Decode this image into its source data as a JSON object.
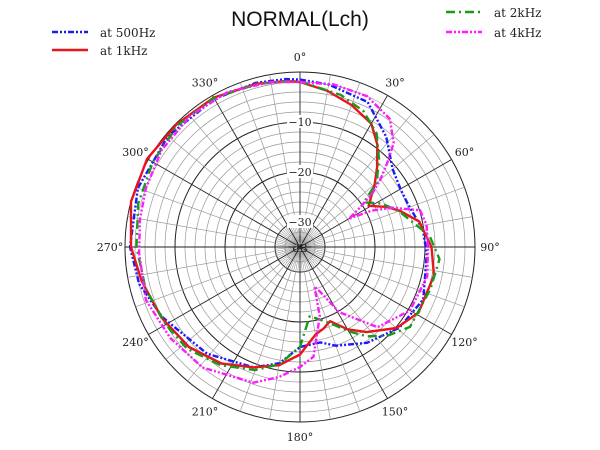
{
  "chart_data": {
    "type": "line",
    "subtype": "polar",
    "title": "NORMAL(Lch)",
    "radial_unit": "dB",
    "rlim": [
      -35,
      0
    ],
    "radial_ticks": [
      -10,
      -20,
      -30
    ],
    "radial_tick_labels": [
      "−10",
      "−20",
      "−30"
    ],
    "angle_ticks": [
      0,
      30,
      60,
      90,
      120,
      150,
      180,
      210,
      240,
      270,
      300,
      330
    ],
    "angle_tick_labels": [
      "0°",
      "30°",
      "60°",
      "90°",
      "120°",
      "150°",
      "180°",
      "210°",
      "240°",
      "270°",
      "300°",
      "330°"
    ],
    "angle_direction": "clockwise from top",
    "grid": true,
    "legend": {
      "placement": "top-left and top-right"
    },
    "series": [
      {
        "name": "at 500Hz",
        "color": "#1a1aff",
        "style": "dash-dot-dot",
        "points": [
          [
            0,
            -1.5
          ],
          [
            10,
            -2
          ],
          [
            25,
            -3
          ],
          [
            38,
            -7
          ],
          [
            50,
            -10.8
          ],
          [
            60,
            -11.8
          ],
          [
            68,
            -11.8
          ],
          [
            82,
            -10.2
          ],
          [
            93,
            -9.6
          ],
          [
            113,
            -8.2
          ],
          [
            129,
            -9.4
          ],
          [
            145,
            -11.6
          ],
          [
            160,
            -14
          ],
          [
            168,
            -15.5
          ],
          [
            180,
            -15
          ],
          [
            190,
            -11.4
          ],
          [
            201,
            -9.2
          ],
          [
            221,
            -6.7
          ],
          [
            243,
            -4.1
          ],
          [
            257,
            -2
          ],
          [
            270,
            -1
          ],
          [
            290,
            -0.5
          ],
          [
            310,
            -0.5
          ],
          [
            330,
            -0.8
          ],
          [
            345,
            -1
          ],
          [
            355,
            -1.3
          ]
        ]
      },
      {
        "name": "at 1kHz",
        "color": "#e8141e",
        "style": "solid",
        "points": [
          [
            0,
            -2
          ],
          [
            10,
            -3.3
          ],
          [
            20,
            -4.8
          ],
          [
            30,
            -6.5
          ],
          [
            37,
            -9.3
          ],
          [
            44,
            -12.8
          ],
          [
            50,
            -15.5
          ],
          [
            59,
            -19
          ],
          [
            65,
            -16
          ],
          [
            70,
            -13.8
          ],
          [
            78,
            -10.6
          ],
          [
            90,
            -8.7
          ],
          [
            102,
            -7.6
          ],
          [
            119,
            -7.9
          ],
          [
            130,
            -9.8
          ],
          [
            142,
            -13.4
          ],
          [
            150,
            -16
          ],
          [
            158,
            -19
          ],
          [
            164,
            -18
          ],
          [
            170,
            -17.2
          ],
          [
            180,
            -13.5
          ],
          [
            190,
            -11
          ],
          [
            201,
            -9.2
          ],
          [
            214,
            -6.9
          ],
          [
            228,
            -5.1
          ],
          [
            243,
            -3.9
          ],
          [
            258,
            -2.6
          ],
          [
            270,
            -1.2
          ],
          [
            285,
            0
          ],
          [
            300,
            0.3
          ],
          [
            315,
            -0.2
          ],
          [
            330,
            -0.5
          ],
          [
            345,
            -1.2
          ],
          [
            355,
            -1.7
          ]
        ]
      },
      {
        "name": "at 2kHz",
        "color": "#1a9a1a",
        "style": "dash-dot",
        "points": [
          [
            0,
            -1.9
          ],
          [
            15,
            -3.5
          ],
          [
            25,
            -5
          ],
          [
            34,
            -7.6
          ],
          [
            42,
            -11.4
          ],
          [
            50,
            -15
          ],
          [
            55,
            -19.4
          ],
          [
            62,
            -16.5
          ],
          [
            70,
            -14
          ],
          [
            76,
            -12.4
          ],
          [
            85,
            -9
          ],
          [
            95,
            -7
          ],
          [
            108,
            -7.6
          ],
          [
            126,
            -7.8
          ],
          [
            135,
            -10
          ],
          [
            143,
            -12.6
          ],
          [
            150,
            -15.5
          ],
          [
            157,
            -18.2
          ],
          [
            165,
            -20
          ],
          [
            172,
            -21
          ],
          [
            178,
            -17
          ],
          [
            180,
            -15
          ],
          [
            190,
            -11.2
          ],
          [
            200,
            -8.8
          ],
          [
            214,
            -6.5
          ],
          [
            228,
            -4.6
          ],
          [
            240,
            -4
          ],
          [
            255,
            -3
          ],
          [
            270,
            -2.3
          ],
          [
            285,
            -1.5
          ],
          [
            300,
            -1
          ],
          [
            315,
            -0.5
          ],
          [
            330,
            -0.6
          ],
          [
            345,
            -1.3
          ],
          [
            355,
            -1.7
          ]
        ]
      },
      {
        "name": "at 4kHz",
        "color": "#ff1aff",
        "style": "dash-dot-dot",
        "points": [
          [
            0,
            -2
          ],
          [
            12,
            -1.8
          ],
          [
            24,
            -2
          ],
          [
            35,
            -3.7
          ],
          [
            42,
            -7
          ],
          [
            46,
            -10.7
          ],
          [
            50,
            -14
          ],
          [
            53.5,
            -17
          ],
          [
            57,
            -21
          ],
          [
            60,
            -23.7
          ],
          [
            63,
            -19
          ],
          [
            67,
            -14.9
          ],
          [
            73,
            -9.9
          ],
          [
            80,
            -9.3
          ],
          [
            91,
            -9.4
          ],
          [
            103,
            -8.9
          ],
          [
            120,
            -9.6
          ],
          [
            136,
            -12.7
          ],
          [
            149,
            -19.8
          ],
          [
            156,
            -25.3
          ],
          [
            160,
            -26.6
          ],
          [
            164,
            -20.6
          ],
          [
            173,
            -12.9
          ],
          [
            180,
            -11
          ],
          [
            189,
            -8.7
          ],
          [
            199,
            -6.3
          ],
          [
            219,
            -4
          ],
          [
            235,
            -3.3
          ],
          [
            251,
            -2.4
          ],
          [
            268,
            -2.8
          ],
          [
            280,
            -2.5
          ],
          [
            291,
            -2
          ],
          [
            305,
            -1.2
          ],
          [
            320,
            -0.8
          ],
          [
            335,
            -0.8
          ],
          [
            350,
            -1.5
          ]
        ]
      }
    ]
  }
}
